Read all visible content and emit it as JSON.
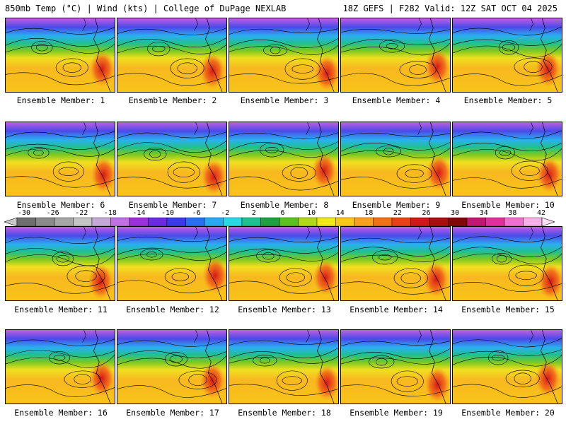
{
  "header": {
    "left": "850mb Temp (°C) | Wind (kts) | College of DuPage NEXLAB",
    "right": "18Z GEFS | F282 Valid: 12Z SAT OCT 04 2025"
  },
  "panels": [
    {
      "label": "Ensemble Member: 1"
    },
    {
      "label": "Ensemble Member: 2"
    },
    {
      "label": "Ensemble Member: 3"
    },
    {
      "label": "Ensemble Member: 4"
    },
    {
      "label": "Ensemble Member: 5"
    },
    {
      "label": "Ensemble Member: 6"
    },
    {
      "label": "Ensemble Member: 7"
    },
    {
      "label": "Ensemble Member: 8"
    },
    {
      "label": "Ensemble Member: 9"
    },
    {
      "label": "Ensemble Member: 10"
    },
    {
      "label": "Ensemble Member: 11"
    },
    {
      "label": "Ensemble Member: 12"
    },
    {
      "label": "Ensemble Member: 13"
    },
    {
      "label": "Ensemble Member: 14"
    },
    {
      "label": "Ensemble Member: 15"
    },
    {
      "label": "Ensemble Member: 16"
    },
    {
      "label": "Ensemble Member: 17"
    },
    {
      "label": "Ensemble Member: 18"
    },
    {
      "label": "Ensemble Member: 19"
    },
    {
      "label": "Ensemble Member: 20"
    }
  ],
  "colorbar": {
    "tick_labels": [
      "-30",
      "-26",
      "-22",
      "-18",
      "-14",
      "-10",
      "-6",
      "-2",
      "2",
      "6",
      "10",
      "14",
      "18",
      "22",
      "26",
      "30",
      "34",
      "38",
      "42"
    ],
    "colors": [
      "#6e6e6e",
      "#8a8a8a",
      "#a6a6a6",
      "#c4c4c4",
      "#c4a8d6",
      "#c070e0",
      "#9a30d8",
      "#6a2ae0",
      "#3a3ae8",
      "#2a6ef0",
      "#2aa8f0",
      "#2ad8e0",
      "#20c090",
      "#20a040",
      "#5cc020",
      "#b0d818",
      "#f0e818",
      "#f8c818",
      "#f8a020",
      "#f07018",
      "#e84018",
      "#d01818",
      "#a81010",
      "#800808",
      "#c01870",
      "#e030a0",
      "#f070d0",
      "#f8b0e8"
    ]
  }
}
